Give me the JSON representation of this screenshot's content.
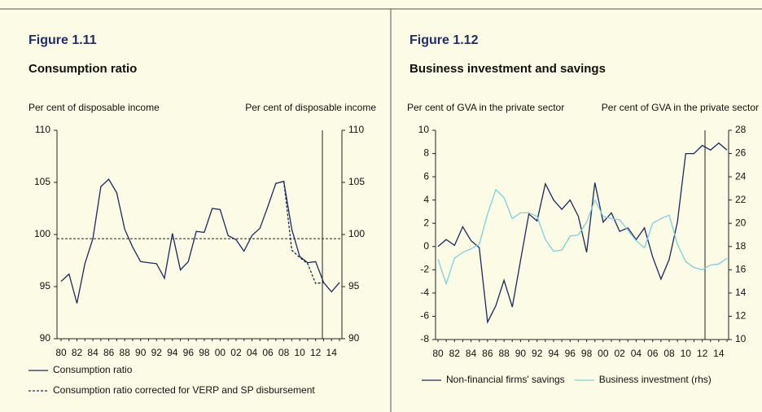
{
  "chart_data": [
    {
      "type": "line",
      "figure": "Figure 1.11",
      "title": "Consumption ratio",
      "ylabel": "Per cent of disposable income",
      "y2label": "Per cent of disposable income",
      "categories": [
        "80",
        null,
        "82",
        null,
        "84",
        null,
        "86",
        null,
        "88",
        null,
        "90",
        null,
        "92",
        null,
        "94",
        null,
        "96",
        null,
        "98",
        null,
        "00",
        null,
        "02",
        null,
        "04",
        null,
        "06",
        null,
        "08",
        null,
        "10",
        null,
        "12",
        null,
        "14",
        null
      ],
      "series": [
        {
          "name": "Consumption ratio",
          "color": "#1a2a5e",
          "linestyle": "solid",
          "values": [
            95.5,
            96.2,
            93.4,
            97.2,
            99.6,
            104.6,
            105.3,
            104.0,
            100.5,
            98.8,
            97.4,
            97.3,
            97.2,
            95.8,
            100.1,
            96.6,
            97.4,
            100.3,
            100.2,
            102.5,
            102.4,
            99.9,
            99.5,
            98.4,
            99.9,
            100.6,
            102.7,
            104.9,
            105.1,
            100.5,
            97.9,
            97.3,
            97.4,
            95.4,
            94.5,
            95.4
          ]
        },
        {
          "name": "Consumption ratio corrected for VERP and SP disbursement",
          "color": "#1a2a5e",
          "linestyle": "dashed",
          "values": [
            null,
            null,
            null,
            null,
            null,
            null,
            null,
            null,
            null,
            null,
            null,
            null,
            null,
            null,
            null,
            null,
            null,
            null,
            null,
            null,
            null,
            null,
            null,
            null,
            null,
            null,
            null,
            104.9,
            105.1,
            98.5,
            97.8,
            97.2,
            95.3,
            95.4,
            null,
            null
          ]
        }
      ],
      "hline": 99.6,
      "ylim": [
        90,
        110
      ],
      "yticks": [
        90,
        95,
        100,
        105,
        110
      ],
      "y2lim": [
        90,
        110
      ],
      "y2ticks": [
        90,
        95,
        100,
        105,
        110
      ],
      "legend": "vertical"
    },
    {
      "type": "line",
      "figure": "Figure 1.12",
      "title": "Business investment and savings",
      "ylabel": "Per cent of GVA in the private sector",
      "y2label": "Per cent of GVA in the private sector",
      "categories": [
        "80",
        null,
        "82",
        null,
        "84",
        null,
        "86",
        null,
        "88",
        null,
        "90",
        null,
        "92",
        null,
        "94",
        null,
        "96",
        null,
        "98",
        null,
        "00",
        null,
        "02",
        null,
        "04",
        null,
        "06",
        null,
        "08",
        null,
        "10",
        null,
        "12",
        null,
        "14",
        null
      ],
      "series": [
        {
          "name": "Non-financial firms' savings",
          "color": "#1a2a5e",
          "linestyle": "solid",
          "values": [
            0.0,
            0.6,
            0.1,
            1.7,
            0.5,
            -0.1,
            -6.5,
            -5.1,
            -2.9,
            -5.2,
            -1.2,
            2.8,
            2.2,
            5.4,
            4.0,
            3.2,
            4.0,
            2.6,
            -0.5,
            5.5,
            2.1,
            2.9,
            1.3,
            1.6,
            0.6,
            1.6,
            -0.9,
            -2.8,
            -1.1,
            2.1,
            8.0,
            8.0,
            8.7,
            8.3,
            8.9,
            8.3
          ]
        },
        {
          "name": "Business investment (rhs)",
          "color": "#7ecfe0",
          "linestyle": "solid",
          "axis": "y2",
          "values": [
            16.9,
            14.8,
            17.0,
            17.5,
            17.8,
            18.2,
            20.8,
            22.9,
            22.2,
            20.4,
            20.9,
            20.9,
            20.6,
            18.6,
            17.6,
            17.7,
            18.9,
            19.0,
            20.1,
            22.0,
            20.6,
            20.4,
            20.3,
            19.4,
            18.5,
            17.9,
            20.0,
            20.4,
            20.7,
            18.2,
            16.7,
            16.2,
            16.0,
            16.4,
            16.5,
            17.0
          ]
        }
      ],
      "ylim": [
        -8,
        10
      ],
      "yticks": [
        -8,
        -6,
        -4,
        -2,
        0,
        2,
        4,
        6,
        8,
        10
      ],
      "y2lim": [
        10,
        28
      ],
      "y2ticks": [
        10,
        12,
        14,
        16,
        18,
        20,
        22,
        24,
        26,
        28
      ],
      "legend": "horizontal"
    }
  ]
}
